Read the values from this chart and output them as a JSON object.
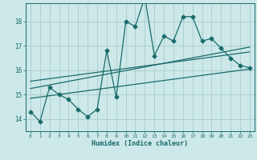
{
  "xlabel": "Humidex (Indice chaleur)",
  "ylabel": "",
  "bg_color": "#cce8e8",
  "grid_color": "#aacccc",
  "line_color": "#1a6b6b",
  "xlim": [
    -0.5,
    23.5
  ],
  "ylim": [
    13.5,
    18.75
  ],
  "yticks": [
    14,
    15,
    16,
    17,
    18
  ],
  "xticks": [
    0,
    1,
    2,
    3,
    4,
    5,
    6,
    7,
    8,
    9,
    10,
    11,
    12,
    13,
    14,
    15,
    16,
    17,
    18,
    19,
    20,
    21,
    22,
    23
  ],
  "main_data": [
    14.3,
    13.9,
    15.3,
    15.0,
    14.8,
    14.4,
    14.1,
    14.4,
    16.8,
    14.9,
    18.0,
    17.8,
    19.0,
    16.6,
    17.4,
    17.2,
    18.2,
    18.2,
    17.2,
    17.3,
    16.9,
    16.5,
    16.2,
    16.1
  ],
  "trend1_x": [
    0,
    23
  ],
  "trend1_y": [
    15.55,
    16.75
  ],
  "trend2_x": [
    0,
    23
  ],
  "trend2_y": [
    15.25,
    16.95
  ],
  "trend3_x": [
    0,
    23
  ],
  "trend3_y": [
    14.85,
    16.05
  ],
  "marker_size": 2.5,
  "linewidth": 0.9
}
